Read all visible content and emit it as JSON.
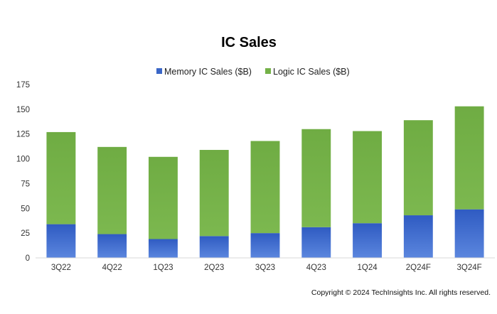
{
  "chart_data": {
    "type": "bar",
    "stacked": true,
    "title": "IC Sales",
    "xlabel": "",
    "ylabel": "",
    "categories": [
      "3Q22",
      "4Q22",
      "1Q23",
      "2Q23",
      "3Q23",
      "4Q23",
      "1Q24",
      "2Q24F",
      "3Q24F"
    ],
    "series": [
      {
        "name": "Memory IC Sales ($B)",
        "color": "#3a66c7",
        "values": [
          34,
          24,
          19,
          22,
          25,
          31,
          35,
          43,
          49
        ]
      },
      {
        "name": "Logic IC Sales ($B)",
        "color": "#74b147",
        "values": [
          93,
          88,
          83,
          87,
          93,
          99,
          93,
          96,
          104
        ]
      }
    ],
    "ylim": [
      0,
      175
    ],
    "yticks": [
      0,
      25,
      50,
      75,
      100,
      125,
      150,
      175
    ],
    "grid": false,
    "legend_position": "top-center"
  },
  "footer": {
    "copyright": "Copyright © 2024 TechInsights Inc.  All rights reserved."
  }
}
